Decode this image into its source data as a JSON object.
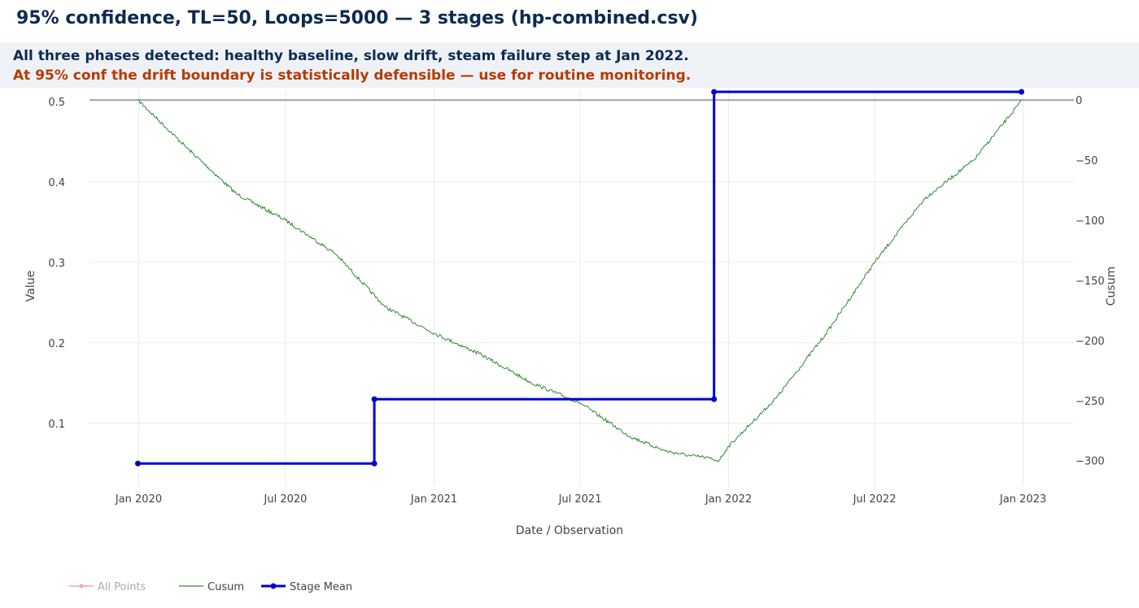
{
  "header": {
    "title": "95% confidence, TL=50, Loops=5000 — 3 stages  (hp-combined.csv)",
    "banner_line1": "All three phases detected: healthy baseline, slow drift, steam failure step at Jan 2022.",
    "banner_line2": "At 95% conf the drift boundary is statistically defensible — use for routine monitoring."
  },
  "colors": {
    "title": "#0d2b52",
    "banner_bg": "#eef2f7",
    "banner_warning": "#b83a00",
    "cusum": "#2e8b2e",
    "stage_mean": "#0000cc",
    "all_points_legend": "#f4a6a6",
    "grid": "#ebebeb"
  },
  "chart_data": {
    "type": "line",
    "xlabel": "Date / Observation",
    "ylabel": "Value",
    "y2label": "Cusum",
    "x_tick_labels": [
      "Jan 2020",
      "Jul 2020",
      "Jan 2021",
      "Jul 2021",
      "Jan 2022",
      "Jul 2022",
      "Jan 2023"
    ],
    "x_tick_dates": [
      "2020-01-01",
      "2020-07-01",
      "2021-01-01",
      "2021-07-01",
      "2022-01-01",
      "2022-07-01",
      "2023-01-01"
    ],
    "xlim": [
      "2019-11-01",
      "2023-03-05"
    ],
    "ylim": [
      0.022,
      0.515
    ],
    "y_ticks": [
      0.1,
      0.2,
      0.3,
      0.4,
      0.5
    ],
    "y_tick_labels": [
      "0.1",
      "0.2",
      "0.3",
      "0.4",
      "0.5"
    ],
    "y2lim": [
      -311,
      0
    ],
    "y2_ticks": [
      0,
      -50,
      -100,
      -150,
      -200,
      -250,
      -300
    ],
    "y2_tick_labels": [
      "0",
      "−50",
      "−100",
      "−150",
      "−200",
      "−250",
      "−300"
    ],
    "grid": true,
    "legend_position": "bottom-left",
    "series": [
      {
        "name": "All Points",
        "visible": false
      },
      {
        "name": "Cusum",
        "axis": "y2",
        "x": [
          "2019-12-31",
          "2020-03-01",
          "2020-05-01",
          "2020-07-01",
          "2020-09-01",
          "2020-11-01",
          "2021-01-01",
          "2021-03-01",
          "2021-05-01",
          "2021-07-01",
          "2021-09-01",
          "2021-10-15",
          "2021-11-15",
          "2021-12-01",
          "2021-12-20",
          "2022-01-01",
          "2022-03-01",
          "2022-05-01",
          "2022-07-01",
          "2022-09-01",
          "2022-11-01",
          "2022-12-31"
        ],
        "y": [
          0,
          -40,
          -78,
          -100,
          -128,
          -172,
          -194,
          -212,
          -235,
          -252,
          -280,
          -292,
          -296,
          -297,
          -300,
          -288,
          -248,
          -195,
          -135,
          -82,
          -50,
          0
        ]
      },
      {
        "name": "Stage Mean",
        "axis": "y",
        "x": [
          "2019-12-31",
          "2020-10-19",
          "2020-10-19",
          "2021-12-14",
          "2021-12-14",
          "2022-12-30"
        ],
        "y": [
          0.05,
          0.05,
          0.13,
          0.13,
          0.512,
          0.512
        ]
      }
    ]
  }
}
